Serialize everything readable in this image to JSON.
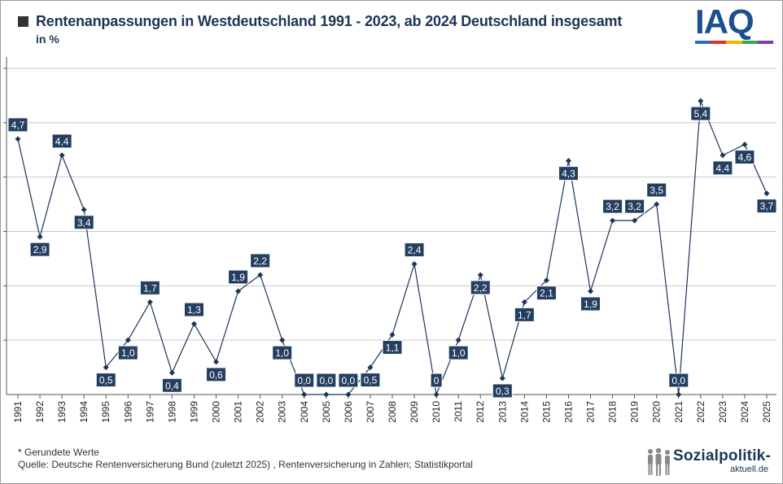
{
  "header": {
    "title": "Rentenanpassungen in Westdeutschland 1991 - 2023, ab 2024 Deutschland insgesamt",
    "subtitle": "in %"
  },
  "logo": {
    "text": "IAQ",
    "colors": [
      "#2a6db5",
      "#e0312b",
      "#f5b400",
      "#34a853",
      "#7c3fa0"
    ]
  },
  "footer": {
    "note": "* Gerundete Werte",
    "source": "Quelle: Deutsche Rentenversicherung Bund (zuletzt 2025) , Rentenversicherung in Zahlen; Statistikportal"
  },
  "brand": {
    "name": "Sozialpolitik-",
    "suffix": "aktuell.de"
  },
  "colors": {
    "line": "#1c3557",
    "label_bg": "#253f60",
    "label_text": "#ffffff",
    "grid": "#c8c8c8"
  },
  "chart_data": {
    "type": "line",
    "x": [
      "1991",
      "1992",
      "1993",
      "1994",
      "1995",
      "1996",
      "1997",
      "1998",
      "1999",
      "2000",
      "2001",
      "2002",
      "2003",
      "2004",
      "2005",
      "2006",
      "2007",
      "2008",
      "2009",
      "2010",
      "2011",
      "2012",
      "2013",
      "2014",
      "2015",
      "2016",
      "2017",
      "2018",
      "2019",
      "2020",
      "2021",
      "2022",
      "2023",
      "2024",
      "2025"
    ],
    "values": [
      4.7,
      2.9,
      4.4,
      3.4,
      0.5,
      1.0,
      1.7,
      0.4,
      1.3,
      0.6,
      1.9,
      2.2,
      1.0,
      0.0,
      0.0,
      0.0,
      0.5,
      1.1,
      2.4,
      0.0,
      1.0,
      2.2,
      0.3,
      1.7,
      2.1,
      4.3,
      1.9,
      3.2,
      3.2,
      3.5,
      0.0,
      5.4,
      4.4,
      4.6,
      3.7
    ],
    "data_labels": [
      "4,7",
      "2,9",
      "4,4",
      "3,4",
      "0,5",
      "1,0",
      "1,7",
      "0,4",
      "1,3",
      "0,6",
      "1,9",
      "2,2",
      "1,0",
      "0,0",
      "0,0",
      "0,0",
      "0,5",
      "1,1",
      "2,4",
      "0",
      "1,0",
      "2,2",
      "0,3",
      "1,7",
      "2,1",
      "4,3",
      "1,9",
      "3,2",
      "3,2",
      "3,5",
      "0,0",
      "5,4",
      "4,4",
      "4,6",
      "3,7"
    ],
    "label_position": [
      "above",
      "below",
      "above",
      "below",
      "below",
      "below",
      "above",
      "below",
      "above",
      "below",
      "above",
      "above",
      "below",
      "above",
      "above",
      "above",
      "below",
      "below",
      "above",
      "above",
      "below",
      "below",
      "below",
      "below",
      "below",
      "below",
      "below",
      "above",
      "above",
      "above",
      "above",
      "below",
      "below",
      "below",
      "below"
    ],
    "ylim": [
      0,
      6
    ],
    "grid": true,
    "legend": "none"
  }
}
